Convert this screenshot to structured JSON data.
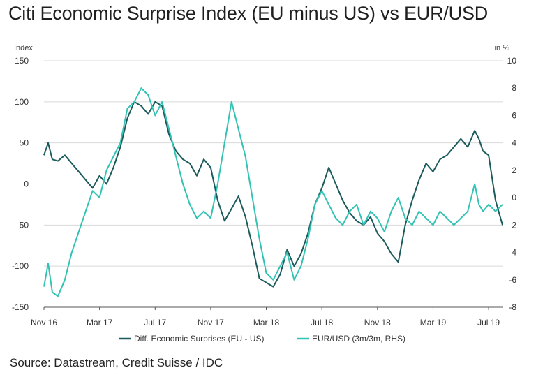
{
  "title": "Citi Economic Surprise Index (EU minus US) vs EUR/USD",
  "source": "Source: Datastream, Credit Suisse / IDC",
  "colors": {
    "diff": "#1b5b5b",
    "eurusd": "#33c3b4",
    "grid": "#d9d9d9",
    "axis": "#555555"
  },
  "chart_data": {
    "type": "line",
    "title": "Citi Economic Surprise Index (EU minus US) vs EUR/USD",
    "x_labels": [
      "Nov 16",
      "Mar 17",
      "Jul 17",
      "Nov 17",
      "Mar 18",
      "Jul 18",
      "Nov 18",
      "Mar 19",
      "Jul 19"
    ],
    "x_range": [
      0,
      33
    ],
    "y_left": {
      "label": "Index",
      "ticks": [
        150,
        100,
        50,
        0,
        -50,
        -100,
        -150
      ],
      "ylim": [
        -150,
        150
      ]
    },
    "y_right": {
      "label": "in %",
      "ticks": [
        10,
        8,
        6,
        4,
        2,
        0,
        -2,
        -4,
        -6,
        -8
      ],
      "ylim": [
        -8,
        10
      ]
    },
    "grid": true,
    "legend_position": "bottom",
    "series": [
      {
        "name": "Diff. Economic Surprises (EU - US)",
        "axis": "left",
        "x": [
          0,
          0.3,
          0.6,
          1,
          1.5,
          2,
          2.5,
          3,
          3.5,
          4,
          4.5,
          5,
          5.5,
          6,
          6.5,
          7,
          7.5,
          8,
          8.5,
          9,
          9.5,
          10,
          10.5,
          11,
          11.5,
          12,
          12.5,
          13,
          13.5,
          14,
          14.5,
          15,
          15.5,
          16,
          16.5,
          17,
          17.5,
          18,
          18.5,
          19,
          19.5,
          20,
          20.5,
          21,
          21.5,
          22,
          22.5,
          23,
          23.5,
          24,
          24.5,
          25,
          25.5,
          26,
          26.5,
          27,
          27.5,
          28,
          28.5,
          29,
          29.5,
          30,
          30.5,
          31,
          31.3,
          31.6,
          32,
          32.5,
          33
        ],
        "y": [
          35,
          50,
          30,
          28,
          35,
          25,
          15,
          5,
          -5,
          10,
          0,
          20,
          45,
          80,
          100,
          95,
          85,
          100,
          95,
          60,
          40,
          30,
          25,
          10,
          30,
          20,
          -20,
          -45,
          -30,
          -15,
          -40,
          -75,
          -115,
          -120,
          -125,
          -110,
          -80,
          -100,
          -85,
          -60,
          -25,
          -5,
          20,
          0,
          -20,
          -35,
          -45,
          -50,
          -40,
          -60,
          -70,
          -85,
          -95,
          -50,
          -20,
          5,
          25,
          15,
          30,
          35,
          45,
          55,
          45,
          65,
          55,
          40,
          35,
          -20,
          -50
        ]
      },
      {
        "name": "EUR/USD (3m/3m, RHS)",
        "axis": "right",
        "x": [
          0,
          0.3,
          0.6,
          1,
          1.5,
          2,
          2.5,
          3,
          3.5,
          4,
          4.5,
          5,
          5.5,
          6,
          6.5,
          7,
          7.5,
          8,
          8.5,
          9,
          9.5,
          10,
          10.5,
          11,
          11.5,
          12,
          12.5,
          13,
          13.5,
          14,
          14.5,
          15,
          15.5,
          16,
          16.5,
          17,
          17.5,
          18,
          18.5,
          19,
          19.5,
          20,
          20.5,
          21,
          21.5,
          22,
          22.5,
          23,
          23.5,
          24,
          24.5,
          25,
          25.5,
          26,
          26.5,
          27,
          27.5,
          28,
          28.5,
          29,
          29.5,
          30,
          30.5,
          31,
          31.3,
          31.6,
          32,
          32.5,
          33
        ],
        "y": [
          -6.5,
          -4.8,
          -6.9,
          -7.2,
          -6,
          -4,
          -2.5,
          -1,
          0.5,
          0,
          2,
          3,
          4,
          6.5,
          7,
          8,
          7.5,
          6,
          7,
          5,
          3,
          1,
          -0.5,
          -1.5,
          -1,
          -1.5,
          1,
          4,
          7,
          5,
          3,
          0,
          -3,
          -5.5,
          -6,
          -5,
          -4,
          -6,
          -5,
          -3,
          -0.5,
          0.5,
          -0.5,
          -1.5,
          -2,
          -1,
          -0.5,
          -2,
          -1,
          -1.5,
          -2.5,
          -1,
          0,
          -1.5,
          -2,
          -1,
          -1.5,
          -2,
          -1,
          -1.5,
          -2,
          -1.5,
          -1,
          1,
          -0.5,
          -1,
          -0.5,
          -1,
          -0.5
        ]
      }
    ]
  }
}
